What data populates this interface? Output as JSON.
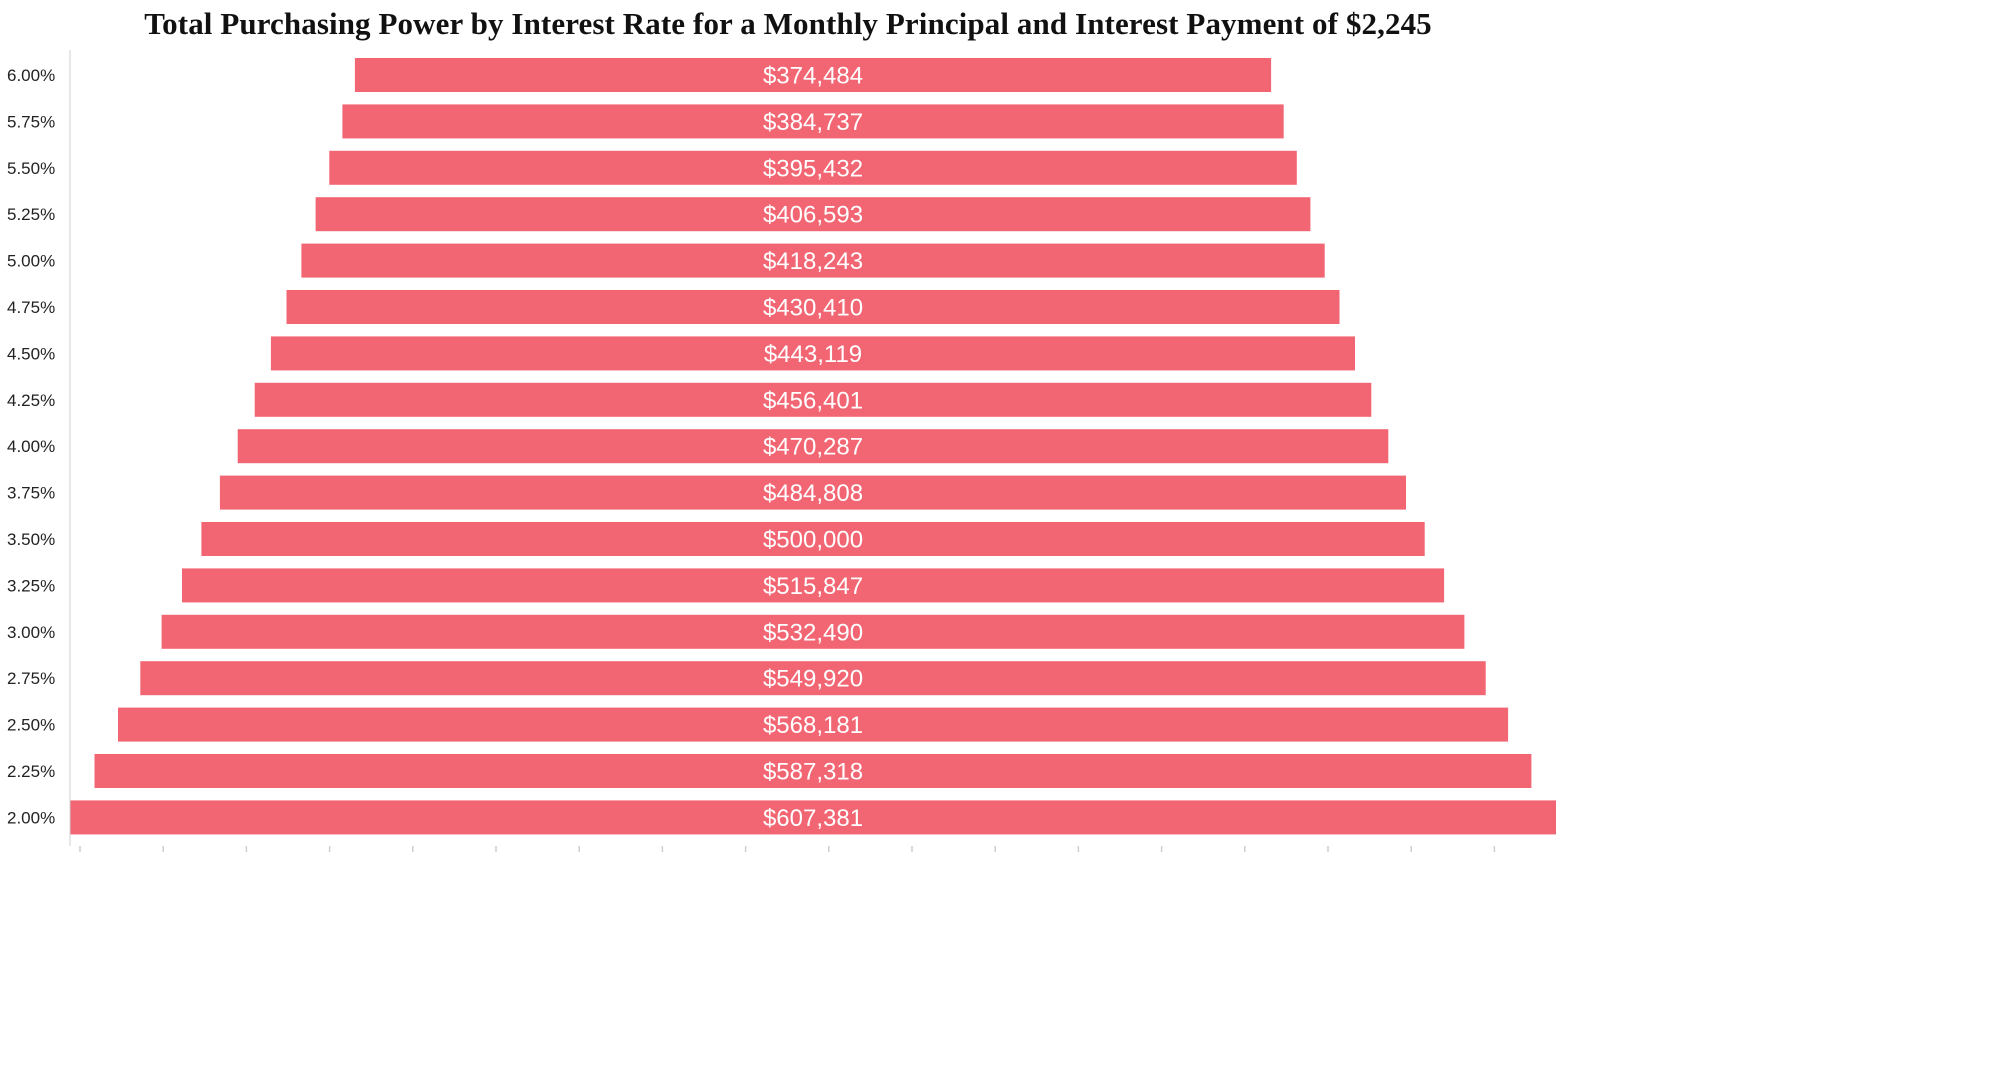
{
  "chart_data": {
    "type": "bar",
    "orientation": "horizontal-centered",
    "title": "Total Purchasing Power by Interest Rate for a Monthly Principal and Interest Payment of $2,245",
    "xlabel": "",
    "ylabel": "",
    "categories": [
      "6.00%",
      "5.75%",
      "5.50%",
      "5.25%",
      "5.00%",
      "4.75%",
      "4.50%",
      "4.25%",
      "4.00%",
      "3.75%",
      "3.50%",
      "3.25%",
      "3.00%",
      "2.75%",
      "2.50%",
      "2.25%",
      "2.00%"
    ],
    "values": [
      374484,
      384737,
      395432,
      406593,
      418243,
      430410,
      443119,
      456401,
      470287,
      484808,
      500000,
      515847,
      532490,
      549920,
      568181,
      587318,
      607381
    ],
    "value_labels": [
      "$374,484",
      "$384,737",
      "$395,432",
      "$406,593",
      "$418,243",
      "$430,410",
      "$443,119",
      "$456,401",
      "$470,287",
      "$484,808",
      "$500,000",
      "$515,847",
      "$532,490",
      "$549,920",
      "$568,181",
      "$587,318",
      "$607,381"
    ],
    "xlim": [
      0,
      607381
    ],
    "grid": false,
    "legend": "none",
    "x_tick_labels_shown": false,
    "bar_color": "#f26673",
    "axis_color": "#cfcfcf",
    "label_color": "#ffffff"
  }
}
